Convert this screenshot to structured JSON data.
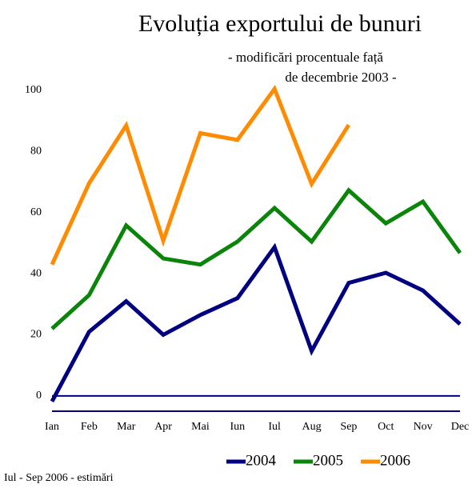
{
  "chart_data": {
    "type": "line",
    "title": "Evoluția exportului de bunuri",
    "subtitle": [
      "- modificări procentuale față",
      "de decembrie 2003 -"
    ],
    "categories": [
      "Ian",
      "Feb",
      "Mar",
      "Apr",
      "Mai",
      "Iun",
      "Iul",
      "Aug",
      "Sep",
      "Oct",
      "Nov",
      "Dec"
    ],
    "series": [
      {
        "name": "2004",
        "color": "#000080",
        "values": [
          -1.8,
          21,
          31,
          20,
          26.5,
          32,
          48.7,
          14.7,
          37,
          40.3,
          34.5,
          23.5
        ]
      },
      {
        "name": "2005",
        "color": "#0a850a",
        "values": [
          22,
          33,
          55.8,
          45,
          43,
          50.5,
          61.5,
          50.5,
          67.3,
          56.5,
          63.6,
          46.8
        ]
      },
      {
        "name": "2006",
        "color": "#ff8c00",
        "values": [
          43,
          69.6,
          88.5,
          50.8,
          86,
          83.8,
          100.5,
          69.4,
          88.7,
          null,
          null,
          null
        ]
      }
    ],
    "ylim": [
      -5,
      100
    ],
    "yticks": [
      0,
      20,
      40,
      60,
      80,
      100
    ],
    "grid": false,
    "footnote": "Iul - Sep 2006 - estimări"
  }
}
